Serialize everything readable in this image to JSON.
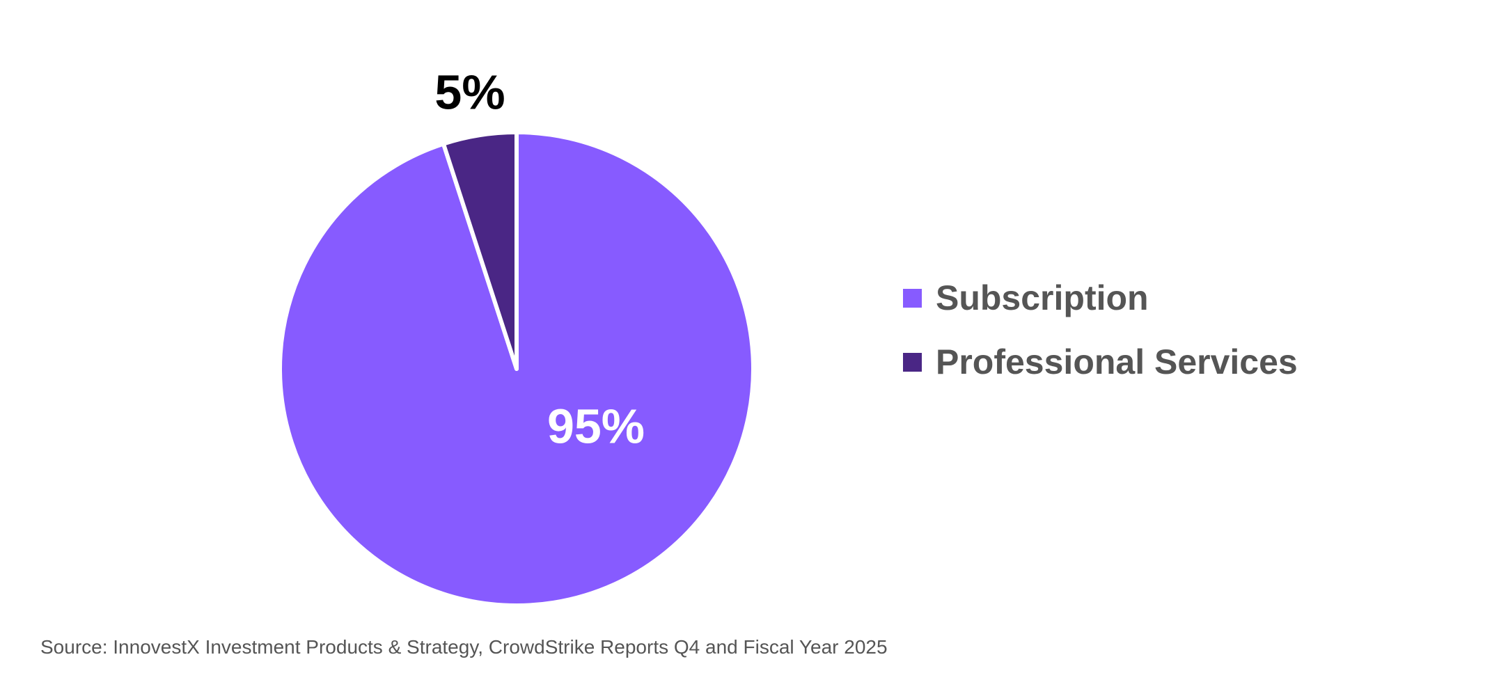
{
  "chart_data": {
    "type": "pie",
    "title": "",
    "slices": [
      {
        "name": "Subscription",
        "value": 95,
        "label": "95%",
        "color": "#875BFF",
        "label_color": "#FFFFFF"
      },
      {
        "name": "Professional Services",
        "value": 5,
        "label": "5%",
        "color": "#4A2685",
        "label_color": "#000000"
      }
    ],
    "start_angle_deg": 0,
    "direction": "clockwise",
    "slice_border_color": "#FFFFFF",
    "legend_placement": "right"
  },
  "legend": {
    "items": [
      {
        "label": "Subscription",
        "color": "#875BFF"
      },
      {
        "label": "Professional Services",
        "color": "#4A2685"
      }
    ]
  },
  "source": "Source: InnovestX Investment Products & Strategy, CrowdStrike Reports Q4 and Fiscal Year 2025"
}
